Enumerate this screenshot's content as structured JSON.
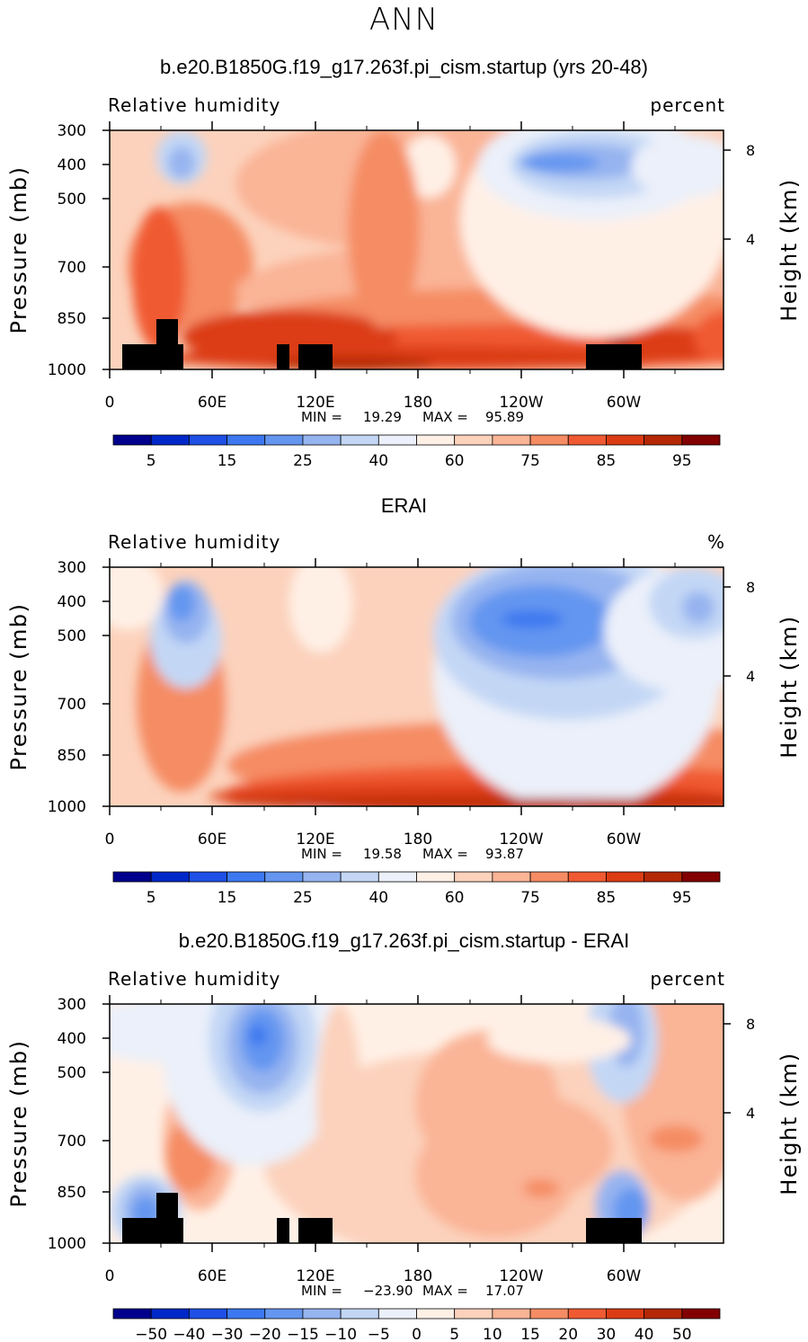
{
  "season": "ANN",
  "chart_data": [
    {
      "type": "heatmap",
      "title": "b.e20.B1850G.f19_g17.263f.pi_cism.startup (yrs 20-48)",
      "left_label": "Relative humidity",
      "right_label": "percent",
      "ylabel": "Pressure (mb)",
      "y2label": "Height (km)",
      "x_ticks": [
        "0",
        "60E",
        "120E",
        "180",
        "120W",
        "60W"
      ],
      "y_ticks": [
        "300",
        "400",
        "500",
        "700",
        "850",
        "1000"
      ],
      "y2_ticks": [
        "8",
        "4"
      ],
      "min_label": "MIN =",
      "min": "19.29",
      "max_label": "MAX =",
      "max": "95.89",
      "ylim": [
        1000,
        300
      ],
      "colorbar_labels": [
        "5",
        "15",
        "25",
        "40",
        "60",
        "75",
        "85",
        "95"
      ],
      "colors": [
        "#00008c",
        "#0028c8",
        "#1e50e6",
        "#3c78f0",
        "#6496f0",
        "#96b4f0",
        "#c3d7f5",
        "#ebf0fa",
        "#fff0e6",
        "#fcd2bc",
        "#fab496",
        "#f58c64",
        "#f05a32",
        "#dc3c14",
        "#b42805",
        "#820000"
      ]
    },
    {
      "type": "heatmap",
      "title": "ERAI",
      "left_label": "Relative humidity",
      "right_label": "%",
      "ylabel": "Pressure (mb)",
      "y2label": "Height (km)",
      "x_ticks": [
        "0",
        "60E",
        "120E",
        "180",
        "120W",
        "60W"
      ],
      "y_ticks": [
        "300",
        "400",
        "500",
        "700",
        "850",
        "1000"
      ],
      "y2_ticks": [
        "8",
        "4"
      ],
      "min_label": "MIN =",
      "min": "19.58",
      "max_label": "MAX =",
      "max": "93.87",
      "ylim": [
        1000,
        300
      ],
      "colorbar_labels": [
        "5",
        "15",
        "25",
        "40",
        "60",
        "75",
        "85",
        "95"
      ],
      "colors": [
        "#00008c",
        "#0028c8",
        "#1e50e6",
        "#3c78f0",
        "#6496f0",
        "#96b4f0",
        "#c3d7f5",
        "#ebf0fa",
        "#fff0e6",
        "#fcd2bc",
        "#fab496",
        "#f58c64",
        "#f05a32",
        "#dc3c14",
        "#b42805",
        "#820000"
      ]
    },
    {
      "type": "heatmap",
      "title": "b.e20.B1850G.f19_g17.263f.pi_cism.startup - ERAI",
      "left_label": "Relative humidity",
      "right_label": "percent",
      "ylabel": "Pressure (mb)",
      "y2label": "Height (km)",
      "x_ticks": [
        "0",
        "60E",
        "120E",
        "180",
        "120W",
        "60W"
      ],
      "y_ticks": [
        "300",
        "400",
        "500",
        "700",
        "850",
        "1000"
      ],
      "y2_ticks": [
        "8",
        "4"
      ],
      "min_label": "MIN =",
      "min": "−23.90",
      "max_label": "MAX =",
      "max": "17.07",
      "ylim": [
        1000,
        300
      ],
      "colorbar_labels": [
        "−50",
        "−40",
        "−30",
        "−20",
        "−15",
        "−10",
        "−5",
        "0",
        "5",
        "10",
        "15",
        "20",
        "30",
        "40",
        "50"
      ],
      "colors": [
        "#00008c",
        "#0028c8",
        "#1e50e6",
        "#3c78f0",
        "#6496f0",
        "#96b4f0",
        "#c3d7f5",
        "#ebf0fa",
        "#fff0e6",
        "#fcd2bc",
        "#fab496",
        "#f58c64",
        "#f05a32",
        "#dc3c14",
        "#b42805",
        "#820000"
      ]
    }
  ]
}
